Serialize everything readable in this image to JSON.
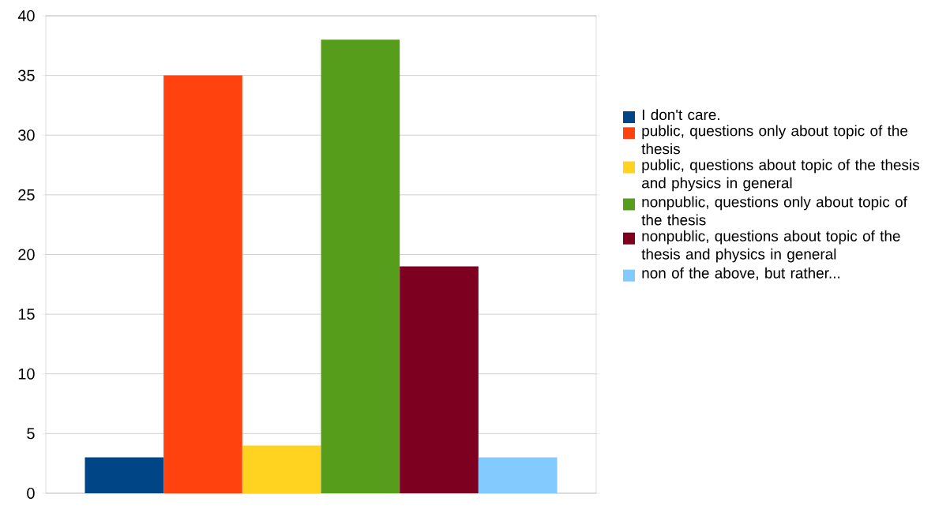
{
  "chart_data": {
    "type": "bar",
    "categories": [
      null
    ],
    "series": [
      {
        "name": "I don't care.",
        "color": "#004586",
        "values": [
          3
        ]
      },
      {
        "name": "public, questions only about topic of the thesis",
        "color": "#ff420e",
        "values": [
          35
        ]
      },
      {
        "name": "public, questions about topic of the thesis and physics in general",
        "color": "#ffd320",
        "values": [
          4
        ]
      },
      {
        "name": "nonpublic, questions only about topic of the thesis",
        "color": "#579d1c",
        "values": [
          38
        ]
      },
      {
        "name": "nonpublic, questions about topic of the thesis and physics in general",
        "color": "#7e0021",
        "values": [
          19
        ]
      },
      {
        "name": "non of the above, but rather...",
        "color": "#83caff",
        "values": [
          3
        ]
      }
    ],
    "ylim": [
      0,
      40
    ],
    "yticks": [
      0,
      5,
      10,
      15,
      20,
      25,
      30,
      35,
      40
    ],
    "grid": "y",
    "legend": "right"
  }
}
